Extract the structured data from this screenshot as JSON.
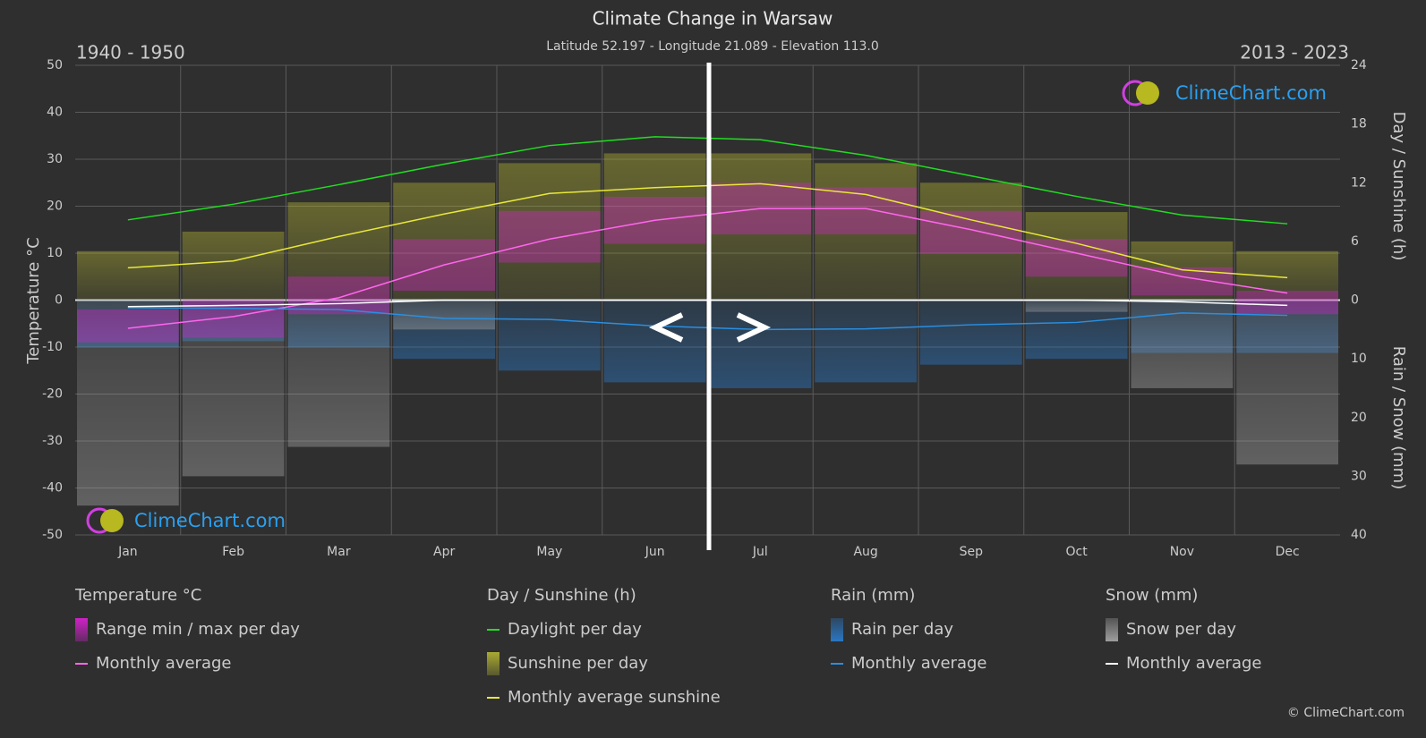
{
  "chart_data": {
    "type": "climate",
    "title": "Climate Change in Warsaw",
    "subtitle": "Latitude 52.197 - Longitude 21.089 - Elevation 113.0",
    "period_left": "1940 - 1950",
    "period_right": "2013 - 2023",
    "y_label": "Temperature °C",
    "y2_label": "Day / Sunshine (h)",
    "y3_label": "Rain / Snow (mm)",
    "logo": "ClimeChart.com",
    "copyright": "© ClimeChart.com",
    "categories": [
      "Jan",
      "Feb",
      "Mar",
      "Apr",
      "May",
      "Jun",
      "Jul",
      "Aug",
      "Sep",
      "Oct",
      "Nov",
      "Dec"
    ],
    "ylim": [
      -50,
      50
    ],
    "yticks": [
      -50,
      -40,
      -30,
      -20,
      -10,
      0,
      10,
      20,
      30,
      40,
      50
    ],
    "y2lim": [
      0,
      24
    ],
    "y2ticks": [
      0,
      6,
      12,
      18,
      24
    ],
    "y3lim": [
      0,
      40
    ],
    "y3ticks": [
      10,
      20,
      30,
      40
    ],
    "grid": true,
    "groups": [
      {
        "title": "Temperature °C",
        "series": [
          {
            "name": "Range min / max per day",
            "kind": "range",
            "color": "#e020d8",
            "min": [
              -9,
              -8,
              -3,
              2,
              8,
              12,
              14,
              14,
              10,
              5,
              1,
              -3
            ],
            "max": [
              -2,
              0,
              5,
              13,
              19,
              22,
              25,
              24,
              19,
              13,
              7,
              2
            ]
          },
          {
            "name": "Monthly average",
            "kind": "line",
            "color": "#ff66ee",
            "values": [
              -6,
              -3.5,
              0.5,
              7.5,
              13,
              17,
              19.5,
              19.5,
              15,
              10,
              5,
              1.5
            ]
          }
        ]
      },
      {
        "title": "Day / Sunshine (h)",
        "series": [
          {
            "name": "Daylight per day",
            "kind": "line",
            "axis": "y2",
            "color": "#22dd22",
            "values": [
              8.2,
              9.8,
              11.8,
              13.9,
              15.8,
              16.7,
              16.4,
              14.8,
              12.7,
              10.6,
              8.7,
              7.8
            ]
          },
          {
            "name": "Sunshine per day",
            "kind": "bars",
            "axis": "y2",
            "color": "#b8b832",
            "values": [
              5,
              7,
              10,
              12,
              14,
              15,
              15,
              14,
              12,
              9,
              6,
              5
            ]
          },
          {
            "name": "Monthly average sunshine",
            "kind": "line",
            "axis": "y2",
            "color": "#e8e83a",
            "values": [
              3.3,
              4,
              6.5,
              8.8,
              10.9,
              11.5,
              11.9,
              10.8,
              8.2,
              5.8,
              3.1,
              2.3
            ]
          }
        ]
      },
      {
        "title": "Rain (mm)",
        "series": [
          {
            "name": "Rain per day",
            "kind": "bars",
            "axis": "y3",
            "color": "#2a7fd4",
            "values": [
              8,
              7,
              8,
              10,
              12,
              14,
              15,
              14,
              11,
              10,
              9,
              9
            ]
          },
          {
            "name": "Monthly average",
            "kind": "line",
            "axis": "y3",
            "color": "#2a8fe0",
            "values": [
              1.3,
              1.4,
              1.6,
              3.1,
              3.3,
              4.4,
              5,
              4.9,
              4.2,
              3.8,
              2.2,
              2.6
            ]
          }
        ]
      },
      {
        "title": "Snow (mm)",
        "series": [
          {
            "name": "Snow per day",
            "kind": "bars",
            "axis": "y3",
            "color": "#aaaaaa",
            "values": [
              35,
              30,
              25,
              5,
              0,
              0,
              0,
              0,
              0,
              2,
              15,
              28
            ]
          },
          {
            "name": "Monthly average",
            "kind": "line",
            "axis": "y3",
            "color": "#ffffff",
            "values": [
              1.1,
              0.9,
              0.6,
              0,
              0,
              0,
              0,
              0,
              0,
              0,
              0.3,
              0.9
            ]
          }
        ]
      }
    ]
  }
}
